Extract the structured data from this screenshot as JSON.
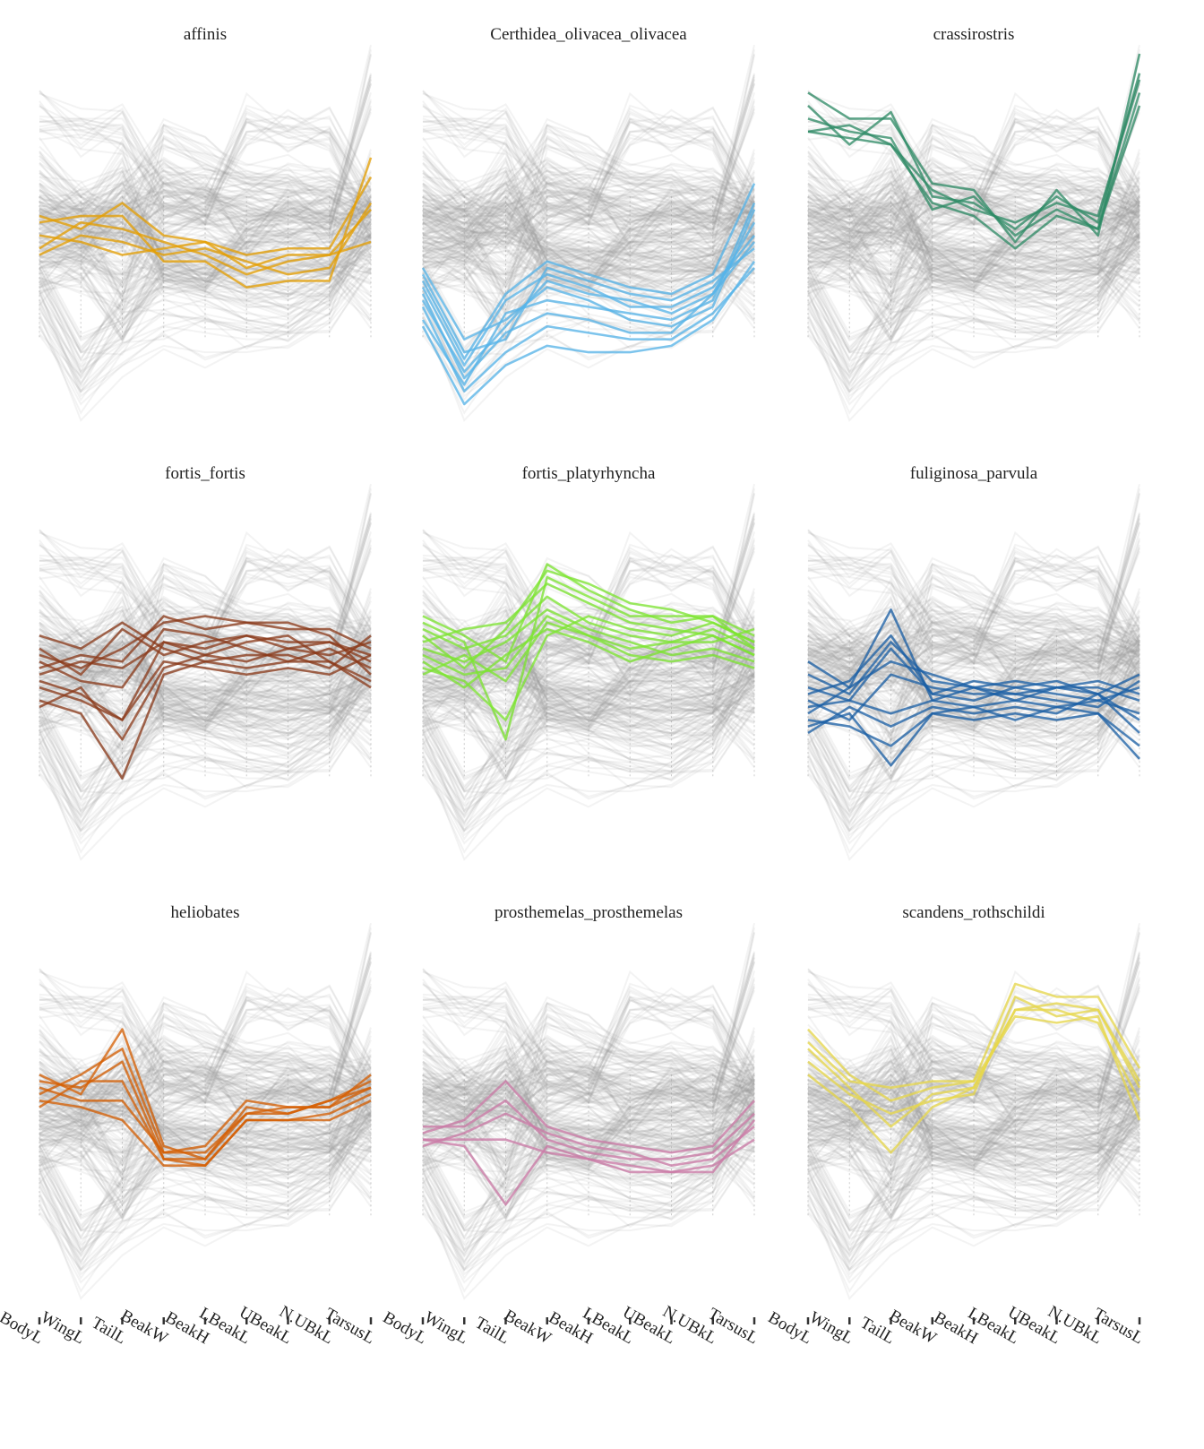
{
  "figure": {
    "axes": [
      "BodyL",
      "WingL",
      "TailL",
      "BeakW",
      "BeakH",
      "LBeakL",
      "UBeakL",
      "N.UBkL",
      "TarsusL"
    ]
  },
  "chart_data": {
    "type": "parallel-coordinates",
    "variables": [
      "BodyL",
      "WingL",
      "TailL",
      "BeakW",
      "BeakH",
      "LBeakL",
      "UBeakL",
      "N.UBkL",
      "TarsusL"
    ],
    "scale": "standardized per variable",
    "ylim": [
      -2.6,
      3.2
    ],
    "background_color": "#9a9a9a",
    "panels": [
      {
        "title": "affinis",
        "color": "#E69F00",
        "profiles": [
          [
            0.6,
            0.7,
            0.7,
            0.0,
            0.0,
            -0.4,
            -0.3,
            -0.3,
            1.6
          ],
          [
            0.4,
            0.3,
            0.1,
            0.2,
            0.3,
            -0.1,
            0.1,
            0.1,
            0.8
          ],
          [
            0.2,
            0.6,
            0.5,
            0.3,
            0.1,
            -0.2,
            0.0,
            0.1,
            0.3
          ],
          [
            0.1,
            0.4,
            0.3,
            0.1,
            0.2,
            0.0,
            -0.2,
            -0.1,
            0.9
          ],
          [
            0.7,
            0.5,
            0.9,
            0.4,
            0.3,
            0.1,
            0.2,
            0.2,
            1.3
          ]
        ]
      },
      {
        "title": "Certhidea_olivacea_olivacea",
        "color": "#56B4E9",
        "profiles": [
          [
            -0.2,
            -1.4,
            -1.2,
            -0.1,
            -0.3,
            -0.5,
            -0.6,
            -0.3,
            0.2
          ],
          [
            -0.6,
            -1.7,
            -1.0,
            -0.3,
            -0.5,
            -0.6,
            -0.8,
            -0.5,
            0.6
          ],
          [
            -0.9,
            -1.9,
            -0.8,
            -0.6,
            -0.7,
            -0.8,
            -0.9,
            -0.6,
            0.9
          ],
          [
            -0.4,
            -1.6,
            -0.6,
            -0.2,
            -0.4,
            -0.7,
            -0.7,
            -0.4,
            0.4
          ],
          [
            -0.1,
            -1.2,
            -0.9,
            -0.4,
            -0.6,
            -0.9,
            -1.0,
            -0.7,
            0.8
          ],
          [
            -0.7,
            -2.0,
            -1.4,
            -1.0,
            -1.1,
            -1.2,
            -1.2,
            -0.8,
            -0.1
          ],
          [
            -1.0,
            -2.2,
            -1.6,
            -1.3,
            -1.4,
            -1.4,
            -1.3,
            -0.9,
            0.0
          ],
          [
            -0.5,
            -1.8,
            -1.1,
            -0.8,
            -0.9,
            -1.1,
            -1.1,
            -0.5,
            0.3
          ],
          [
            -0.3,
            -1.5,
            -0.5,
            0.0,
            -0.2,
            -0.4,
            -0.5,
            -0.2,
            1.2
          ]
        ]
      },
      {
        "title": "crassirostris",
        "color": "#2E8B65",
        "profiles": [
          [
            2.6,
            2.2,
            2.2,
            1.2,
            1.1,
            0.3,
            1.1,
            0.4,
            3.2
          ],
          [
            2.4,
            1.8,
            2.3,
            1.0,
            0.9,
            0.5,
            1.0,
            0.6,
            2.9
          ],
          [
            2.2,
            2.0,
            1.9,
            0.8,
            1.0,
            0.4,
            0.8,
            0.5,
            2.6
          ],
          [
            2.0,
            2.1,
            1.8,
            1.1,
            0.8,
            0.6,
            0.9,
            0.7,
            2.8
          ],
          [
            2.0,
            1.9,
            1.8,
            0.9,
            0.7,
            0.2,
            0.7,
            0.5,
            2.4
          ]
        ]
      },
      {
        "title": "fortis_fortis",
        "color": "#8B3A1A",
        "profiles": [
          [
            0.8,
            0.4,
            1.1,
            0.7,
            0.9,
            1.0,
            0.9,
            0.9,
            0.7
          ],
          [
            0.5,
            0.7,
            0.6,
            1.3,
            1.1,
            1.2,
            1.2,
            1.0,
            0.4
          ],
          [
            0.2,
            0.0,
            -0.3,
            0.9,
            0.7,
            0.6,
            0.8,
            0.7,
            0.9
          ],
          [
            0.6,
            0.3,
            0.2,
            1.1,
            1.0,
            0.8,
            0.6,
            0.8,
            0.5
          ],
          [
            -0.1,
            0.2,
            -0.6,
            0.5,
            0.7,
            0.9,
            1.0,
            0.6,
            0.2
          ],
          [
            1.0,
            0.8,
            1.2,
            0.8,
            0.6,
            0.7,
            0.7,
            0.5,
            1.0
          ],
          [
            0.3,
            0.1,
            -0.3,
            0.6,
            0.5,
            0.4,
            0.5,
            0.4,
            0.7
          ],
          [
            0.7,
            0.5,
            0.8,
            1.2,
            1.3,
            1.2,
            1.1,
            1.1,
            0.8
          ],
          [
            0.0,
            -0.2,
            -1.2,
            0.4,
            0.6,
            0.5,
            0.6,
            0.6,
            0.3
          ],
          [
            0.4,
            0.6,
            0.5,
            0.9,
            0.8,
            1.0,
            0.8,
            0.9,
            0.6
          ]
        ]
      },
      {
        "title": "fortis_platyrhyncha",
        "color": "#7CE52F",
        "profiles": [
          [
            1.1,
            0.8,
            1.0,
            1.6,
            1.2,
            1.0,
            0.9,
            1.1,
            0.8
          ],
          [
            1.3,
            1.0,
            0.6,
            2.1,
            1.7,
            1.4,
            1.2,
            1.3,
            1.0
          ],
          [
            0.8,
            0.6,
            0.9,
            1.4,
            1.1,
            0.9,
            0.7,
            0.8,
            0.6
          ],
          [
            0.5,
            0.3,
            -0.3,
            1.0,
            1.3,
            1.1,
            1.0,
            1.2,
            0.9
          ],
          [
            0.9,
            1.1,
            1.2,
            1.8,
            1.5,
            1.2,
            1.1,
            1.0,
            0.7
          ],
          [
            0.4,
            0.7,
            0.3,
            1.2,
            1.0,
            0.8,
            0.9,
            0.9,
            1.1
          ],
          [
            1.2,
            0.9,
            -0.6,
            1.9,
            1.6,
            1.3,
            1.3,
            1.3,
            0.8
          ],
          [
            0.7,
            0.4,
            0.5,
            1.3,
            1.0,
            0.7,
            0.6,
            0.7,
            0.5
          ],
          [
            1.0,
            0.5,
            1.1,
            2.0,
            1.8,
            1.5,
            1.4,
            1.2,
            0.9
          ],
          [
            0.6,
            0.2,
            0.7,
            1.1,
            0.9,
            0.6,
            0.8,
            1.0,
            0.7
          ]
        ]
      },
      {
        "title": "fuliginosa_parvula",
        "color": "#1A5FA6",
        "profiles": [
          [
            0.2,
            0.0,
            0.8,
            0.1,
            0.0,
            0.2,
            0.1,
            0.0,
            0.2
          ],
          [
            -0.2,
            0.2,
            1.4,
            0.0,
            0.2,
            0.0,
            0.2,
            0.1,
            -0.3
          ],
          [
            0.0,
            -0.3,
            0.4,
            0.2,
            0.1,
            0.1,
            0.0,
            -0.1,
            0.3
          ],
          [
            -0.5,
            -0.1,
            -0.4,
            -0.1,
            -0.2,
            -0.1,
            -0.2,
            0.1,
            -0.5
          ],
          [
            0.4,
            0.1,
            0.9,
            0.3,
            0.2,
            0.3,
            0.2,
            0.2,
            0.0
          ],
          [
            -0.3,
            -0.4,
            -0.7,
            -0.2,
            -0.1,
            -0.3,
            -0.1,
            -0.2,
            -0.7
          ],
          [
            0.1,
            0.3,
            1.0,
            0.1,
            0.3,
            0.2,
            0.3,
            0.1,
            0.4
          ],
          [
            -0.1,
            0.0,
            -0.2,
            0.0,
            -0.1,
            0.0,
            -0.1,
            0.0,
            -0.2
          ],
          [
            0.6,
            0.2,
            0.6,
            0.4,
            0.2,
            0.1,
            0.2,
            0.3,
            0.1
          ],
          [
            -0.4,
            -0.2,
            -1.0,
            -0.2,
            -0.3,
            -0.2,
            -0.3,
            -0.2,
            -0.9
          ]
        ]
      },
      {
        "title": "heliobates",
        "color": "#D55E00",
        "profiles": [
          [
            0.7,
            1.0,
            1.4,
            -0.2,
            -0.2,
            0.4,
            0.5,
            0.5,
            0.8
          ],
          [
            1.0,
            0.7,
            1.7,
            -0.1,
            -0.3,
            0.5,
            0.4,
            0.6,
            0.9
          ],
          [
            0.5,
            0.9,
            0.9,
            -0.3,
            -0.4,
            0.3,
            0.3,
            0.4,
            0.7
          ],
          [
            0.8,
            0.6,
            0.6,
            -0.2,
            -0.1,
            0.6,
            0.5,
            0.5,
            1.0
          ],
          [
            0.9,
            0.8,
            1.2,
            -0.3,
            -0.3,
            0.4,
            0.4,
            0.6,
            0.8
          ],
          [
            0.6,
            0.5,
            0.3,
            -0.4,
            -0.4,
            0.3,
            0.3,
            0.3,
            0.6
          ]
        ]
      },
      {
        "title": "prosthemelas_prosthemelas",
        "color": "#CC79A7",
        "profiles": [
          [
            0.1,
            0.3,
            0.9,
            0.2,
            0.0,
            -0.1,
            -0.2,
            -0.1,
            0.6
          ],
          [
            -0.1,
            0.1,
            0.4,
            0.1,
            -0.1,
            -0.2,
            -0.4,
            -0.3,
            0.2
          ],
          [
            0.0,
            -0.1,
            -1.0,
            -0.1,
            -0.3,
            -0.4,
            -0.5,
            -0.4,
            0.0
          ],
          [
            0.2,
            0.2,
            0.6,
            0.0,
            -0.2,
            -0.3,
            -0.3,
            -0.2,
            0.4
          ],
          [
            0.0,
            0.0,
            0.0,
            -0.2,
            -0.3,
            -0.5,
            -0.5,
            -0.5,
            0.3
          ]
        ]
      },
      {
        "title": "scandens_rothschildi",
        "color": "#E8D84A",
        "profiles": [
          [
            1.7,
            1.0,
            0.6,
            0.8,
            0.9,
            2.4,
            2.2,
            2.2,
            1.1
          ],
          [
            1.4,
            0.8,
            0.2,
            0.7,
            0.8,
            2.0,
            2.0,
            1.8,
            0.6
          ],
          [
            1.2,
            0.7,
            0.4,
            0.6,
            0.7,
            2.2,
            1.9,
            2.0,
            0.9
          ],
          [
            1.5,
            0.9,
            0.8,
            0.9,
            0.9,
            1.9,
            1.8,
            1.9,
            0.3
          ],
          [
            1.0,
            0.5,
            -0.2,
            0.5,
            0.8,
            2.0,
            2.1,
            2.0,
            0.8
          ]
        ]
      }
    ]
  }
}
